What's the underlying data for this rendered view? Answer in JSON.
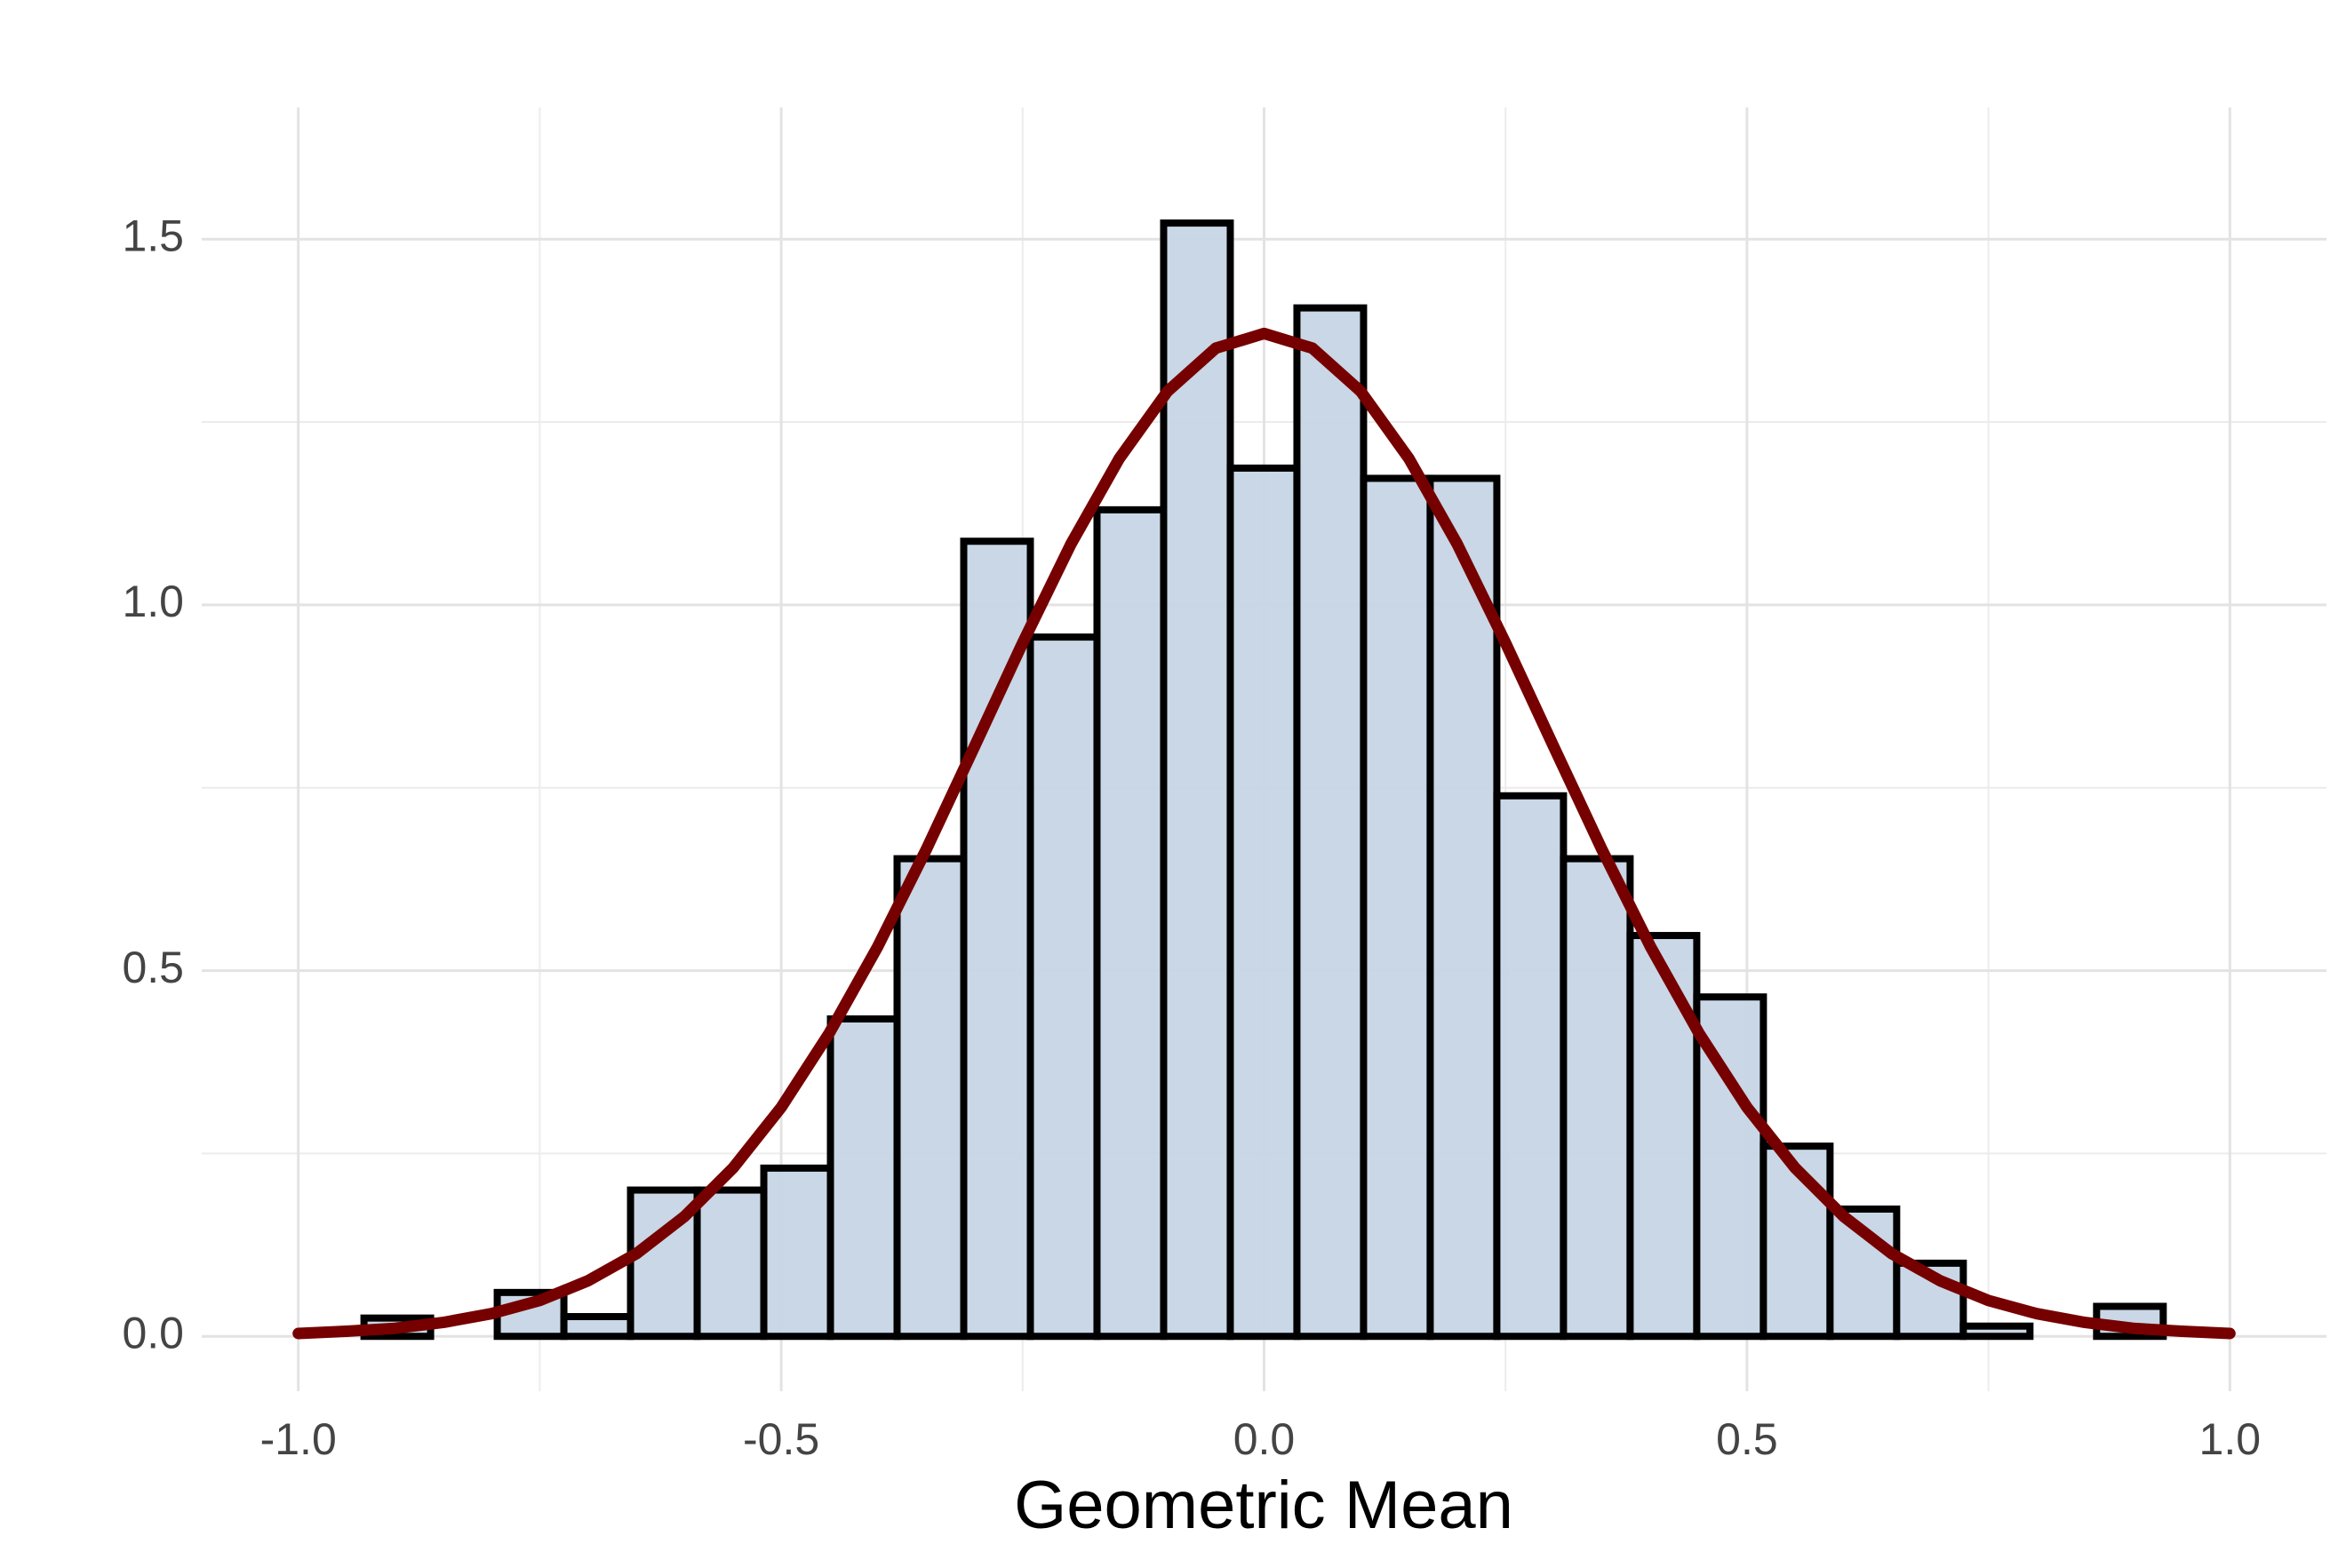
{
  "chart_data": {
    "type": "histogram",
    "x_label": "Geometric Mean",
    "bins": [
      -0.932,
      -0.863,
      -0.794,
      -0.725,
      -0.656,
      -0.587,
      -0.518,
      -0.449,
      -0.38,
      -0.311,
      -0.242,
      -0.173,
      -0.104,
      -0.035,
      0.034,
      0.103,
      0.172,
      0.241,
      0.31,
      0.379,
      0.448,
      0.517,
      0.586,
      0.655,
      0.724,
      0.793,
      0.862,
      0.931
    ],
    "values": [
      0.025,
      0,
      0.06,
      0.027,
      0.2,
      0.2,
      0.23,
      0.434,
      0.653,
      1.087,
      0.956,
      1.13,
      1.522,
      1.187,
      1.406,
      1.173,
      1.173,
      0.739,
      0.653,
      0.548,
      0.464,
      0.26,
      0.174,
      0.1,
      0.014,
      0,
      0.041
    ],
    "color": "#c6d5e5",
    "edge_color": "#000000",
    "density": {
      "color": "#760000",
      "x": [
        -1.0,
        -0.95,
        -0.9,
        -0.85,
        -0.8,
        -0.75,
        -0.7,
        -0.65,
        -0.6,
        -0.55,
        -0.5,
        -0.45,
        -0.4,
        -0.35,
        -0.3,
        -0.25,
        -0.2,
        -0.15,
        -0.1,
        -0.05,
        0,
        0.05,
        0.1,
        0.15,
        0.2,
        0.25,
        0.3,
        0.35,
        0.4,
        0.45,
        0.5,
        0.55,
        0.6,
        0.65,
        0.7,
        0.75,
        0.8,
        0.85,
        0.9,
        0.95,
        1.0
      ],
      "values": [
        0.004,
        0.007,
        0.011,
        0.019,
        0.031,
        0.049,
        0.076,
        0.113,
        0.164,
        0.23,
        0.313,
        0.415,
        0.533,
        0.665,
        0.806,
        0.948,
        1.083,
        1.2,
        1.292,
        1.351,
        1.371,
        1.351,
        1.292,
        1.2,
        1.083,
        0.948,
        0.806,
        0.665,
        0.533,
        0.415,
        0.313,
        0.23,
        0.164,
        0.113,
        0.076,
        0.049,
        0.031,
        0.019,
        0.011,
        0.007,
        0.004
      ]
    },
    "xlim": [
      -1.1,
      1.1
    ],
    "ylim": [
      -0.075,
      1.68
    ],
    "xticks": [
      {
        "value": -1,
        "label": "-1.0"
      },
      -0.5,
      {
        "value": 0,
        "label": "0.0"
      },
      0.5,
      {
        "value": 1,
        "label": "1.0"
      }
    ],
    "yticks": [
      {
        "value": 0,
        "label": "0.0"
      },
      0.5,
      {
        "value": 1,
        "label": "1.0"
      },
      1.5
    ],
    "xminor": [
      -0.75,
      -0.25,
      0.25,
      0.75
    ],
    "yminor": [
      0.25,
      0.75,
      1.25
    ],
    "grid": true
  }
}
